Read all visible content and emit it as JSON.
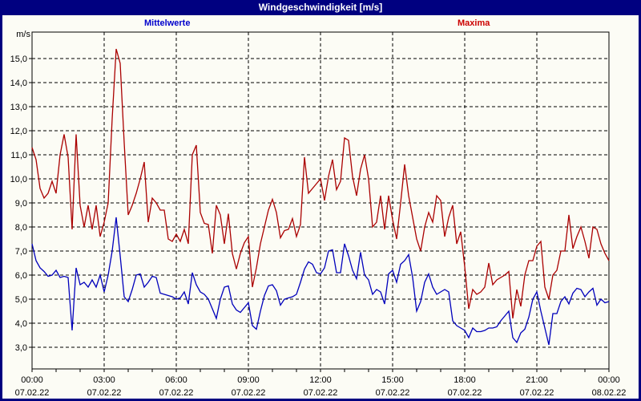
{
  "window": {
    "title": "Windgeschwindigkeit [m/s]"
  },
  "legend": {
    "mean_label": "Mittelwerte",
    "max_label": "Maxima"
  },
  "colors": {
    "title_bar": "#000080",
    "frame": "#000080",
    "background": "#fcfcf5",
    "grid": "#000000",
    "axis": "#000000",
    "mean_line": "#0000bb",
    "max_line": "#aa0000",
    "mean_label_text": "#0000cc",
    "max_label_text": "#cc0000"
  },
  "chart_data": {
    "type": "line",
    "title": "Windgeschwindigkeit [m/s]",
    "xlabel": "",
    "ylabel": "m/s",
    "grid": true,
    "legend_position": "top",
    "x_unit": "minutes since 00:00 07.02.22",
    "x_step_minutes": 10,
    "xlim": [
      0,
      1440
    ],
    "ylim": [
      2.1,
      16.1
    ],
    "y_ticks": [
      3,
      4,
      5,
      6,
      7,
      8,
      9,
      10,
      11,
      12,
      13,
      14,
      15
    ],
    "y_tick_labels": [
      "3,0",
      "4,0",
      "5,0",
      "6,0",
      "7,0",
      "8,0",
      "9,0",
      "10,0",
      "11,0",
      "12,0",
      "13,0",
      "14,0",
      "15,0"
    ],
    "x_major_ticks_minutes": [
      0,
      180,
      360,
      540,
      720,
      900,
      1080,
      1260,
      1440
    ],
    "x_tick_time_labels": [
      "00:00",
      "03:00",
      "06:00",
      "09:00",
      "12:00",
      "15:00",
      "18:00",
      "21:00",
      "00:00"
    ],
    "x_tick_date_labels": [
      "07.02.22",
      "07.02.22",
      "07.02.22",
      "07.02.22",
      "07.02.22",
      "07.02.22",
      "07.02.22",
      "07.02.22",
      "08.02.22"
    ],
    "x_minor_tick_minutes": 60,
    "series": [
      {
        "name": "Mittelwerte",
        "color": "#0000bb",
        "values": [
          7.3,
          6.6,
          6.3,
          6.15,
          5.95,
          6.0,
          6.2,
          5.9,
          5.95,
          5.9,
          3.7,
          6.3,
          5.6,
          5.7,
          5.5,
          5.8,
          5.5,
          6.0,
          5.3,
          6.0,
          7.0,
          8.4,
          6.8,
          5.1,
          4.9,
          5.4,
          6.0,
          6.05,
          5.5,
          5.7,
          5.95,
          5.9,
          5.25,
          5.2,
          5.15,
          5.1,
          5.0,
          5.05,
          5.3,
          4.8,
          6.1,
          5.6,
          5.3,
          5.2,
          5.0,
          4.6,
          4.2,
          5.0,
          5.5,
          5.55,
          4.8,
          4.55,
          4.45,
          4.65,
          4.85,
          3.9,
          3.75,
          4.5,
          5.15,
          5.55,
          5.6,
          5.35,
          4.75,
          5.0,
          5.05,
          5.1,
          5.2,
          5.7,
          6.25,
          6.55,
          6.45,
          6.1,
          6.05,
          6.3,
          7.0,
          7.05,
          6.1,
          6.1,
          7.3,
          6.8,
          6.2,
          5.85,
          6.95,
          6.0,
          5.8,
          5.2,
          5.4,
          5.3,
          4.8,
          6.05,
          6.2,
          5.7,
          6.45,
          6.6,
          6.85,
          5.9,
          4.5,
          4.9,
          5.7,
          6.05,
          5.5,
          5.2,
          5.3,
          5.4,
          5.3,
          4.1,
          3.9,
          3.8,
          3.7,
          3.4,
          3.8,
          3.65,
          3.65,
          3.7,
          3.8,
          3.8,
          3.85,
          4.1,
          4.3,
          4.5,
          3.4,
          3.2,
          3.6,
          3.75,
          4.25,
          5.0,
          5.3,
          4.5,
          3.8,
          3.1,
          4.4,
          4.4,
          4.9,
          5.1,
          4.8,
          5.25,
          5.45,
          5.4,
          5.1,
          5.3,
          5.45,
          4.75,
          5.0,
          4.85,
          4.9
        ]
      },
      {
        "name": "Maxima",
        "color": "#aa0000",
        "values": [
          11.3,
          10.8,
          9.6,
          9.2,
          9.4,
          9.9,
          9.4,
          11.0,
          11.85,
          10.9,
          7.9,
          11.85,
          8.9,
          8.0,
          8.9,
          7.9,
          8.9,
          7.6,
          8.2,
          9.0,
          12.5,
          15.4,
          14.8,
          11.5,
          8.5,
          8.9,
          9.4,
          10.0,
          10.7,
          8.2,
          9.2,
          9.0,
          8.7,
          8.7,
          7.5,
          7.4,
          7.7,
          7.4,
          7.9,
          7.3,
          11.0,
          11.4,
          8.6,
          8.15,
          8.1,
          6.9,
          8.9,
          8.5,
          7.3,
          8.55,
          6.9,
          6.25,
          6.9,
          7.35,
          7.6,
          5.5,
          6.3,
          7.3,
          8.0,
          8.7,
          9.15,
          8.6,
          7.55,
          7.85,
          7.9,
          8.35,
          7.6,
          8.1,
          10.9,
          9.4,
          9.6,
          9.8,
          10.0,
          9.1,
          10.1,
          10.8,
          9.55,
          9.9,
          11.7,
          11.6,
          10.1,
          9.3,
          10.4,
          11.0,
          10.0,
          8.0,
          8.2,
          9.3,
          7.9,
          9.3,
          8.3,
          7.5,
          9.0,
          10.6,
          9.3,
          8.4,
          7.5,
          7.0,
          8.0,
          8.6,
          8.2,
          9.3,
          9.1,
          7.6,
          8.4,
          8.9,
          7.3,
          7.8,
          6.35,
          4.6,
          5.4,
          5.2,
          5.3,
          5.5,
          6.5,
          5.6,
          5.8,
          5.9,
          6.0,
          6.15,
          4.2,
          5.4,
          4.7,
          6.0,
          6.6,
          6.6,
          7.2,
          7.4,
          5.5,
          5.0,
          6.0,
          6.2,
          7.0,
          7.0,
          8.5,
          7.1,
          7.6,
          8.0,
          7.4,
          6.7,
          8.0,
          7.9,
          7.3,
          6.9,
          6.6
        ]
      }
    ]
  }
}
